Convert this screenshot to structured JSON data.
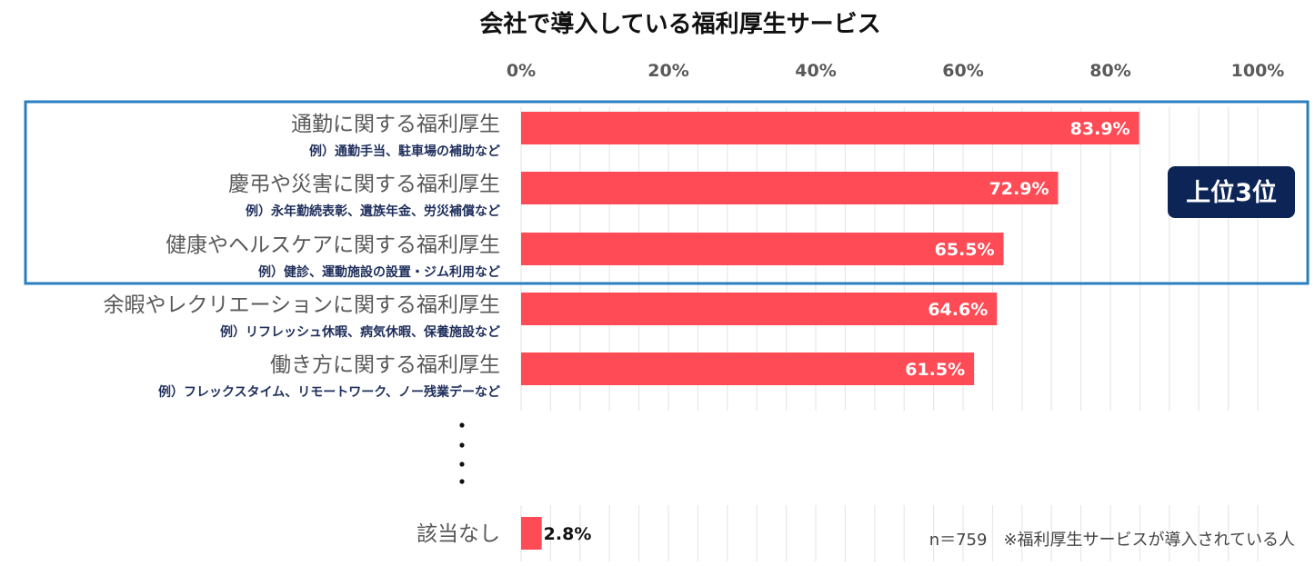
{
  "chart_data": {
    "type": "bar",
    "orientation": "horizontal",
    "title": "会社で導入している福利厚生サービス",
    "xlim": [
      0,
      100
    ],
    "ticks": [
      "0%",
      "20%",
      "40%",
      "60%",
      "80%",
      "100%"
    ],
    "tick_values": [
      0,
      20,
      40,
      60,
      80,
      100
    ],
    "bar_color": "#ff4b55",
    "categories": [
      {
        "label": "通勤に関する福利厚生",
        "example": "例）通勤手当、駐車場の補助など",
        "value": 83.9,
        "value_label": "83.9%"
      },
      {
        "label": "慶弔や災害に関する福利厚生",
        "example": "例）永年勤続表彰、遺族年金、労災補償など",
        "value": 72.9,
        "value_label": "72.9%"
      },
      {
        "label": "健康やヘルスケアに関する福利厚生",
        "example": "例）健診、運動施設の設置・ジム利用など",
        "value": 65.5,
        "value_label": "65.5%"
      },
      {
        "label": "余暇やレクリエーションに関する福利厚生",
        "example": "例）リフレッシュ休暇、病気休暇、保養施設など",
        "value": 64.6,
        "value_label": "64.6%"
      },
      {
        "label": "働き方に関する福利厚生",
        "example": "例）フレックスタイム、リモートワーク、ノー残業デーなど",
        "value": 61.5,
        "value_label": "61.5%"
      }
    ],
    "last_category": {
      "label": "該当なし",
      "value": 2.8,
      "value_label": "2.8%"
    },
    "highlight": {
      "label": "上位3位",
      "box_color": "#2a7fc0",
      "badge_color": "#0d2457"
    },
    "note": "n＝759　※福利厚生サービスが導入されている人"
  }
}
